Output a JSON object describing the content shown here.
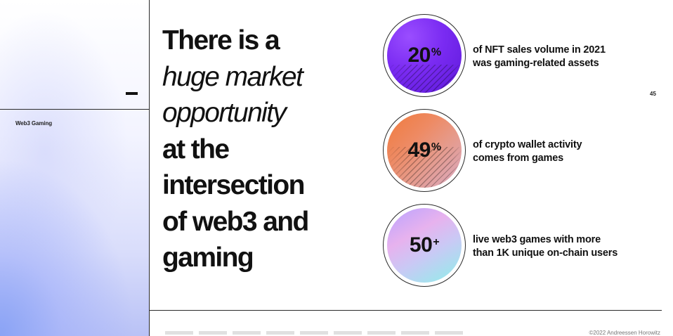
{
  "slide": {
    "section_label": "Web3 Gaming",
    "page_number": "45",
    "copyright": "©2022 Andreessen Horowitz"
  },
  "headline": {
    "line1": "There is a",
    "line2": "huge market",
    "line3": "opportunity",
    "line4": "at the",
    "line5": "intersection",
    "line6": "of web3 and",
    "line7": "gaming"
  },
  "stats": [
    {
      "value": "20",
      "suffix": "%",
      "line1": "of NFT sales volume in 2021",
      "line2": "was gaming-related assets",
      "color": "#7a2bf2"
    },
    {
      "value": "49",
      "suffix": "%",
      "line1": "of crypto wallet activity",
      "line2": "comes from games",
      "color": "#ee8a63"
    },
    {
      "value": "50",
      "suffix": "+",
      "line1": "live web3 games with more",
      "line2": "than 1K unique on-chain users",
      "color": "#c9c9f5"
    }
  ]
}
